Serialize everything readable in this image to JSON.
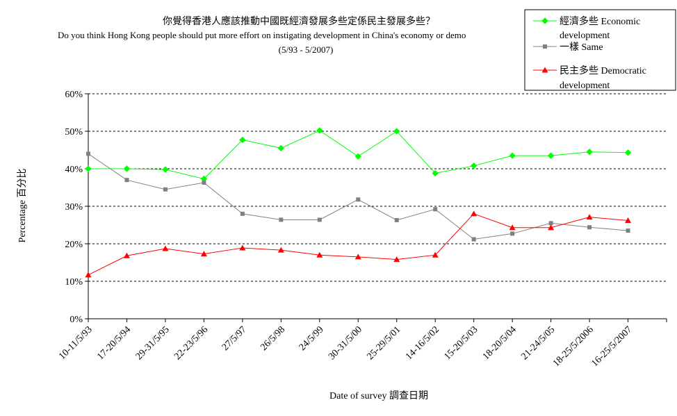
{
  "chart_data": {
    "type": "line",
    "title": "你覺得香港人應該推動中國既經濟發展多些定係民主發展多些？",
    "subtitle": "Do you think Hong Kong people should put more effort on instigating development in China's economy or demo",
    "date_range": "(5/93 - 5/2007)",
    "xlabel": "Date of survey  調查日期",
    "ylabel": "Percentage  百分比",
    "categories": [
      "10-11/5/93",
      "17-20/5/94",
      "29-31/5/95",
      "22-23/5/96",
      "27/5/97",
      "26/5/98",
      "24/5/99",
      "30-31/5/00",
      "25-29/5/01",
      "14-16/5/02",
      "15-20/5/03",
      "18-20/5/04",
      "21-24/5/05",
      "18-25/5/2006",
      "16-25/5/2007"
    ],
    "ylim": [
      0,
      60
    ],
    "y_ticks": [
      "0%",
      "10%",
      "20%",
      "30%",
      "40%",
      "50%",
      "60%"
    ],
    "grid": true,
    "legend_position": "top-right",
    "series": [
      {
        "name": "經濟多些 Economic development",
        "color": "#00ff00",
        "marker": "diamond",
        "values": [
          40,
          40,
          39.8,
          37.3,
          47.7,
          45.5,
          50.2,
          43.3,
          50,
          38.8,
          40.8,
          43.5,
          43.5,
          44.5,
          44.3
        ]
      },
      {
        "name": "一樣 Same",
        "color": "#808080",
        "marker": "square",
        "values": [
          44,
          37,
          34.5,
          36.3,
          28,
          26.4,
          26.4,
          31.8,
          26.3,
          29.2,
          21.2,
          22.7,
          25.5,
          24.4,
          23.5
        ]
      },
      {
        "name": "民主多些 Democratic development",
        "color": "#ff0000",
        "marker": "triangle",
        "values": [
          11.7,
          16.8,
          18.7,
          17.3,
          18.9,
          18.3,
          17,
          16.5,
          15.8,
          17,
          28,
          24.3,
          24.3,
          27.1,
          26.2
        ]
      }
    ]
  }
}
